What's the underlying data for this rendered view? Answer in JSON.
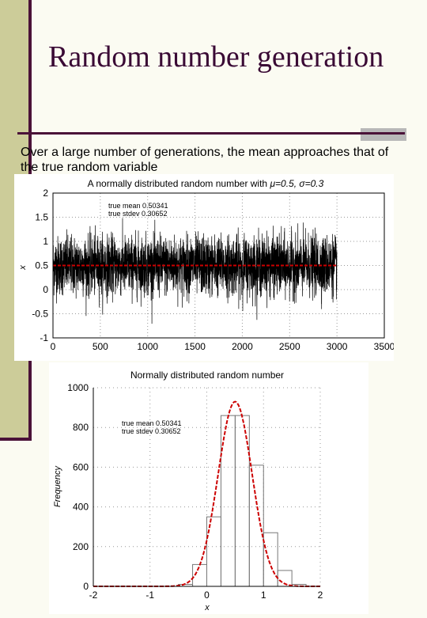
{
  "slide": {
    "title": "Random number generation",
    "caption": "Over a large number of generations, the mean approaches that of the true random variable"
  },
  "chart_data": [
    {
      "type": "line",
      "title_prefix": "A normally distributed random number with ",
      "title_mu": "μ=0.5, ",
      "title_sigma": "σ=0.3",
      "xlabel": "",
      "ylabel": "x",
      "xlim": [
        0,
        3500
      ],
      "ylim": [
        -1,
        2
      ],
      "x_ticks": [
        "0",
        "500",
        "1000",
        "1500",
        "2000",
        "2500",
        "3000",
        "3500"
      ],
      "y_ticks": [
        "-1",
        "-0.5",
        "0",
        "0.5",
        "1",
        "1.5",
        "2"
      ],
      "n_samples": 3000,
      "true_mean_value": 0.5,
      "sample_sd": 0.3,
      "annotations": [
        "true mean 0.50341",
        "true stdev 0.30652"
      ],
      "series": [
        {
          "values": "3000 random samples, mean 0.5, sd 0.3",
          "color": "#000000"
        },
        {
          "values": [
            0.5,
            0.5
          ],
          "x": [
            0,
            3000
          ],
          "color": "#cc0000",
          "style": "dashed"
        }
      ]
    },
    {
      "type": "bar",
      "title": "Normally distributed random number",
      "xlabel": "x",
      "ylabel": "Frequency",
      "xlim": [
        -2,
        2
      ],
      "ylim": [
        0,
        1000
      ],
      "x_ticks": [
        "-2",
        "-1",
        "0",
        "1",
        "2"
      ],
      "y_ticks": [
        "0",
        "200",
        "400",
        "600",
        "800",
        "1000"
      ],
      "annotations": [
        "true mean 0.50341",
        "true stdev 0.30652"
      ],
      "bins": [
        {
          "x0": -0.5,
          "x1": -0.25,
          "value": 10
        },
        {
          "x0": -0.25,
          "x1": 0.0,
          "value": 110
        },
        {
          "x0": 0.0,
          "x1": 0.25,
          "value": 350
        },
        {
          "x0": 0.25,
          "x1": 0.5,
          "value": 860
        },
        {
          "x0": 0.5,
          "x1": 0.75,
          "value": 860
        },
        {
          "x0": 0.75,
          "x1": 1.0,
          "value": 610
        },
        {
          "x0": 1.0,
          "x1": 1.25,
          "value": 270
        },
        {
          "x0": 1.25,
          "x1": 1.5,
          "value": 80
        },
        {
          "x0": 1.5,
          "x1": 1.75,
          "value": 10
        }
      ],
      "fit": {
        "mean": 0.5,
        "sd": 0.3,
        "peak": 930,
        "color": "#cc0000",
        "style": "dashed"
      }
    }
  ]
}
